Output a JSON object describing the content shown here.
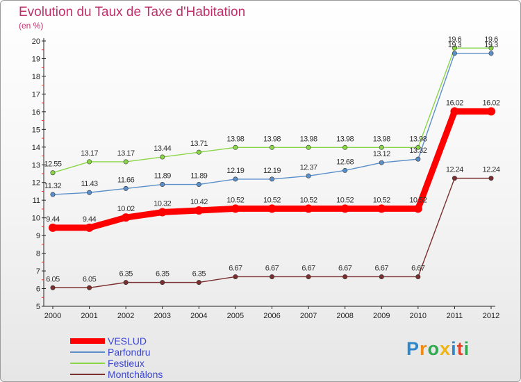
{
  "chart_data": {
    "type": "line",
    "title": "Evolution du Taux de Taxe d'Habitation",
    "subtitle": "(en %)",
    "x": [
      "2000",
      "2001",
      "2002",
      "2003",
      "2004",
      "2005",
      "2006",
      "2007",
      "2008",
      "2009",
      "2010",
      "2011",
      "2012"
    ],
    "ylim": [
      5,
      20
    ],
    "yticks": [
      5,
      6,
      7,
      8,
      9,
      10,
      11,
      12,
      13,
      14,
      15,
      16,
      17,
      18,
      19,
      20
    ],
    "grid": false,
    "legend_position": "bottom-left",
    "series": [
      {
        "name": "VESLUD",
        "color": "#ff0000",
        "emphasis": true,
        "values": [
          9.44,
          9.44,
          10.02,
          10.32,
          10.42,
          10.52,
          10.52,
          10.52,
          10.52,
          10.52,
          10.52,
          16.02,
          16.02
        ],
        "labels": [
          "9.44",
          "9.44",
          "10.02",
          "10.32",
          "10.42",
          "10.52",
          "10.52",
          "10.52",
          "10.52",
          "10.52",
          "10.52",
          "16.02",
          "16.02"
        ]
      },
      {
        "name": "Parfondru",
        "color": "#5b8fc9",
        "values": [
          11.32,
          11.43,
          11.66,
          11.89,
          11.89,
          12.19,
          12.19,
          12.37,
          12.68,
          13.12,
          13.32,
          19.3,
          19.3
        ],
        "labels": [
          "11.32",
          "11.43",
          "11.66",
          "11.89",
          "11.89",
          "12.19",
          "12.19",
          "12.37",
          "12.68",
          "13.12",
          "13.32",
          "19.3",
          "19.3"
        ]
      },
      {
        "name": "Festieux",
        "color": "#8ad647",
        "values": [
          12.55,
          13.17,
          13.17,
          13.44,
          13.71,
          13.98,
          13.98,
          13.98,
          13.98,
          13.98,
          13.98,
          19.6,
          19.6
        ],
        "labels": [
          "12.55",
          "13.17",
          "13.17",
          "13.44",
          "13.71",
          "13.98",
          "13.98",
          "13.98",
          "13.98",
          "13.98",
          "13.98",
          "19.6",
          "19.6"
        ]
      },
      {
        "name": "Montchâlons",
        "color": "#7a2e2e",
        "values": [
          6.05,
          6.05,
          6.35,
          6.35,
          6.35,
          6.67,
          6.67,
          6.67,
          6.67,
          6.67,
          6.67,
          12.24,
          12.24
        ],
        "labels": [
          "6.05",
          "6.05",
          "6.35",
          "6.35",
          "6.35",
          "6.67",
          "6.67",
          "6.67",
          "6.67",
          "6.67",
          "6.67",
          "12.24",
          "12.24"
        ]
      }
    ]
  },
  "logo": {
    "letters": [
      "P",
      "r",
      "o",
      "x",
      "i",
      "t",
      "i"
    ],
    "colors": [
      "#2f86c8",
      "#f08a12",
      "#2fa84f",
      "#f0b410",
      "#2f86c8",
      "#e2452b",
      "#2fa84f"
    ]
  }
}
